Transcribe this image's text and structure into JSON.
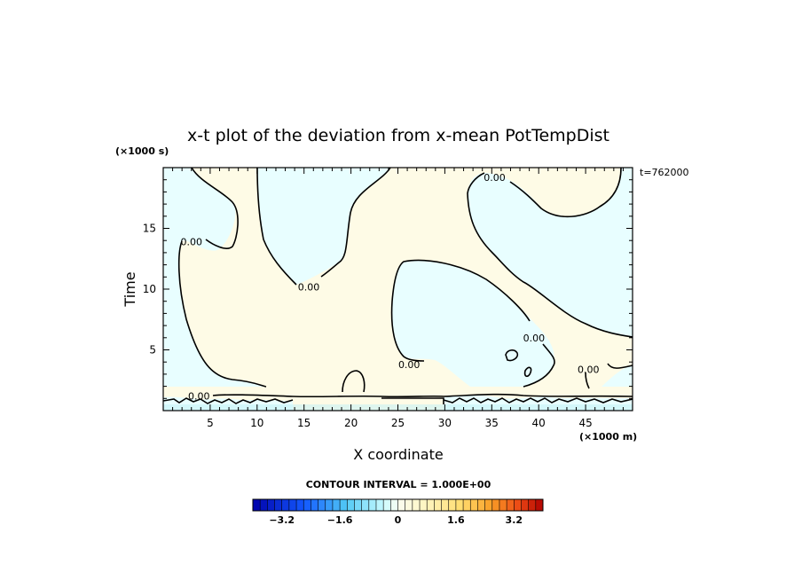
{
  "chart_data": {
    "type": "heatmap",
    "title": "x-t plot of the deviation from x-mean PotTempDist",
    "xlabel": "X coordinate",
    "ylabel": "Time",
    "x_unit": "(×1000 m)",
    "y_unit": "(×1000 s)",
    "time_stamp": "t=762000",
    "xlim": [
      0,
      50
    ],
    "ylim": [
      0,
      20
    ],
    "x_ticks": [
      5,
      10,
      15,
      20,
      25,
      30,
      35,
      40,
      45
    ],
    "y_ticks": [
      5,
      10,
      15
    ],
    "contour_labels": [
      {
        "text": "0.00",
        "x": 3.0,
        "y": 13.9
      },
      {
        "text": "0.00",
        "x": 15.5,
        "y": 10.2
      },
      {
        "text": "0.00",
        "x": 35.3,
        "y": 19.2
      },
      {
        "text": "0.00",
        "x": 26.2,
        "y": 3.8
      },
      {
        "text": "0.00",
        "x": 39.5,
        "y": 6.0
      },
      {
        "text": "0.00",
        "x": 45.3,
        "y": 3.4
      },
      {
        "text": "0.00",
        "x": 3.8,
        "y": 1.2
      }
    ],
    "contour_interval_text": "CONTOUR INTERVAL = 1.000E+00",
    "colorbar": {
      "min": -4.0,
      "max": 4.0,
      "step": 0.2,
      "tick_values": [
        -3.2,
        -1.6,
        0,
        1.6,
        3.2
      ],
      "tick_labels": [
        "−3.2",
        "−1.6",
        "0",
        "1.6",
        "3.2"
      ]
    },
    "colors": {
      "positive_fill": "#fefbe6",
      "negative_fill": "#e8feff",
      "contour": "#000000"
    }
  }
}
